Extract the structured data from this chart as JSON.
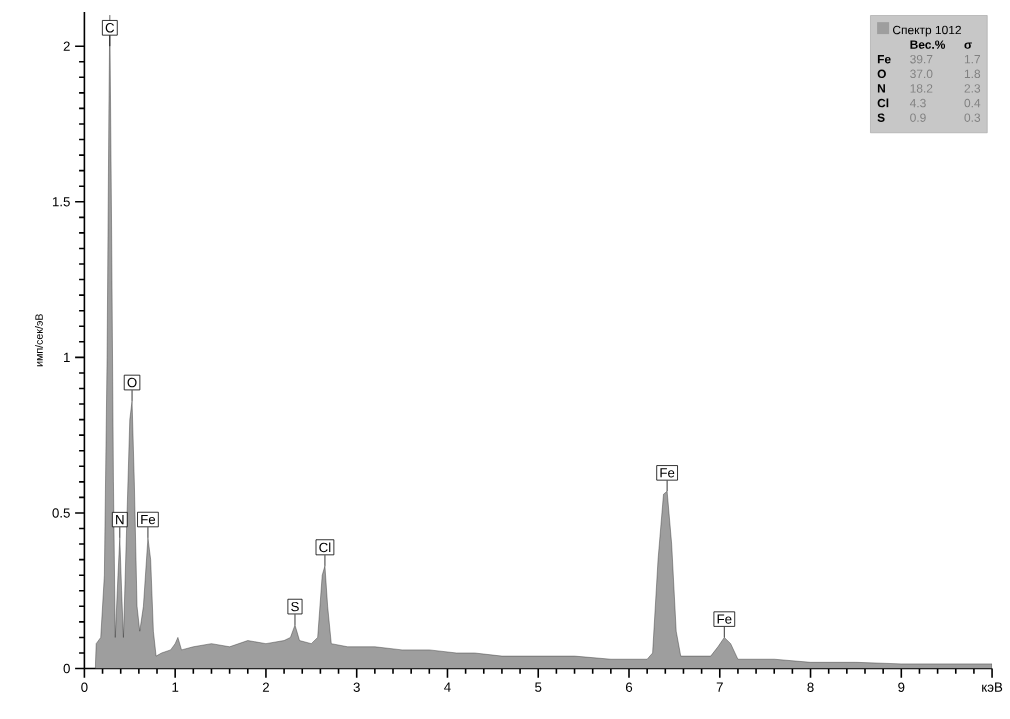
{
  "chart_data": {
    "type": "area",
    "ylabel": "имп/сек/эВ",
    "x": [
      0.12,
      0.13,
      0.18,
      0.22,
      0.25,
      0.27,
      0.28,
      0.3,
      0.32,
      0.34,
      0.37,
      0.39,
      0.41,
      0.43,
      0.46,
      0.5,
      0.525,
      0.55,
      0.58,
      0.61,
      0.65,
      0.7,
      0.73,
      0.76,
      0.79,
      0.85,
      0.95,
      1.0,
      1.03,
      1.07,
      1.2,
      1.4,
      1.6,
      1.8,
      2.0,
      2.2,
      2.27,
      2.32,
      2.37,
      2.5,
      2.57,
      2.62,
      2.65,
      2.68,
      2.72,
      2.9,
      3.2,
      3.5,
      3.8,
      4.1,
      4.3,
      4.6,
      5.0,
      5.4,
      5.8,
      6.2,
      6.26,
      6.32,
      6.38,
      6.42,
      6.47,
      6.52,
      6.57,
      6.9,
      6.98,
      7.05,
      7.12,
      7.2,
      7.6,
      8.0,
      8.5,
      9.0,
      9.5,
      10.0
    ],
    "series": [
      {
        "name": "Спектр 1012",
        "color": "#9e9e9e",
        "values": [
          0,
          0.08,
          0.1,
          0.3,
          1.0,
          1.8,
          2.1,
          1.4,
          0.6,
          0.1,
          0.3,
          0.42,
          0.25,
          0.1,
          0.4,
          0.8,
          0.86,
          0.6,
          0.2,
          0.12,
          0.2,
          0.42,
          0.35,
          0.12,
          0.04,
          0.05,
          0.06,
          0.08,
          0.1,
          0.06,
          0.07,
          0.08,
          0.07,
          0.09,
          0.08,
          0.09,
          0.1,
          0.14,
          0.09,
          0.08,
          0.1,
          0.3,
          0.33,
          0.2,
          0.08,
          0.07,
          0.07,
          0.06,
          0.06,
          0.05,
          0.05,
          0.04,
          0.04,
          0.04,
          0.03,
          0.03,
          0.05,
          0.35,
          0.56,
          0.57,
          0.4,
          0.12,
          0.04,
          0.04,
          0.07,
          0.1,
          0.08,
          0.03,
          0.03,
          0.02,
          0.02,
          0.015,
          0.015,
          0.015
        ]
      }
    ],
    "xlim": [
      0,
      10
    ],
    "ylim": [
      0,
      2.11
    ],
    "xticks": [
      0,
      1,
      2,
      3,
      4,
      5,
      6,
      7,
      8,
      9,
      {
        "value": 10,
        "label": "кэВ"
      }
    ],
    "yticks": [
      0,
      0.5,
      1,
      1.5,
      2
    ],
    "legend": "top right",
    "annotations": [
      {
        "text": "C",
        "x": 0.28,
        "y": 2.0
      },
      {
        "text": "N",
        "x": 0.39,
        "y": 0.42
      },
      {
        "text": "O",
        "x": 0.525,
        "y": 0.86
      },
      {
        "text": "Fe",
        "x": 0.7,
        "y": 0.42
      },
      {
        "text": "S",
        "x": 2.32,
        "y": 0.14
      },
      {
        "text": "Cl",
        "x": 2.65,
        "y": 0.33
      },
      {
        "text": "Fe",
        "x": 6.42,
        "y": 0.57
      },
      {
        "text": "Fe",
        "x": 7.05,
        "y": 0.1
      },
      "Вес.%",
      "σ",
      "Fe",
      "39.7",
      "1.7",
      "O",
      "37.0",
      "1.8",
      "N",
      "18.2",
      "2.3",
      "Cl",
      "4.3",
      "0.4",
      "S",
      "0.9",
      "0.3"
    ]
  }
}
